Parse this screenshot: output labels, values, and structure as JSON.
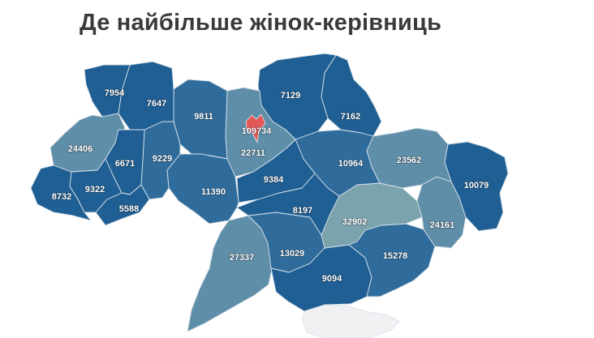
{
  "title": "Де найбільше жінок-керівниць",
  "colors": {
    "dark": "#1f5f93",
    "mid": "#2f6c9c",
    "light": "#5f8ea9",
    "lightest": "#7aa3ad",
    "kyiv_city": "#e45757",
    "crimea": "#f1f1f3"
  },
  "regions": [
    {
      "name": "volyn",
      "value": "7954"
    },
    {
      "name": "rivne",
      "value": "7647"
    },
    {
      "name": "zhytomyr",
      "value": "9811"
    },
    {
      "name": "kyiv_city",
      "value": "109734"
    },
    {
      "name": "kyiv_oblast",
      "value": "22711"
    },
    {
      "name": "chernihiv",
      "value": "7129"
    },
    {
      "name": "sumy",
      "value": "7162"
    },
    {
      "name": "lviv",
      "value": "24406"
    },
    {
      "name": "ternopil",
      "value": "6671"
    },
    {
      "name": "khmelnytskyi",
      "value": "9229"
    },
    {
      "name": "zakarpattia",
      "value": "8732"
    },
    {
      "name": "ivano_frankivsk",
      "value": "9322"
    },
    {
      "name": "chernivtsi",
      "value": "5588"
    },
    {
      "name": "vinnytsia",
      "value": "11390"
    },
    {
      "name": "cherkasy",
      "value": "9384"
    },
    {
      "name": "poltava",
      "value": "10964"
    },
    {
      "name": "kharkiv",
      "value": "23562"
    },
    {
      "name": "luhansk",
      "value": "10079"
    },
    {
      "name": "kirovohrad",
      "value": "8197"
    },
    {
      "name": "dnipropetrovsk",
      "value": "32902"
    },
    {
      "name": "donetsk",
      "value": "24161"
    },
    {
      "name": "odesa",
      "value": "27337"
    },
    {
      "name": "mykolaiv",
      "value": "13029"
    },
    {
      "name": "zaporizhzhia",
      "value": "15278"
    },
    {
      "name": "kherson",
      "value": "9094"
    }
  ]
}
